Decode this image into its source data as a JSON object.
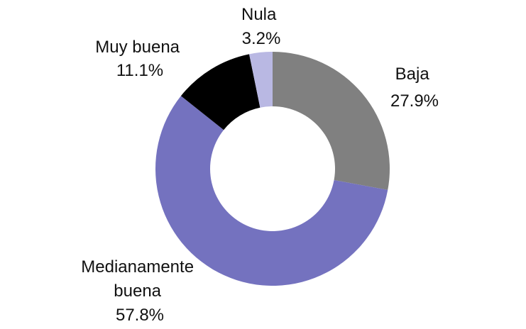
{
  "chart_data": {
    "type": "pie",
    "variant": "donut",
    "title": "",
    "slices": [
      {
        "name": "Baja",
        "value": 27.9,
        "label": "27.9%",
        "color": "#808080"
      },
      {
        "name": "Medianamente buena",
        "value": 57.8,
        "label": "57.8%",
        "color": "#7472bf"
      },
      {
        "name": "Muy buena",
        "value": 11.1,
        "label": "11.1%",
        "color": "#000000"
      },
      {
        "name": "Nula",
        "value": 3.2,
        "label": "3.2%",
        "color": "#b9b8e3"
      }
    ],
    "start_angle_deg": 0,
    "direction": "clockwise",
    "legend": "none"
  }
}
